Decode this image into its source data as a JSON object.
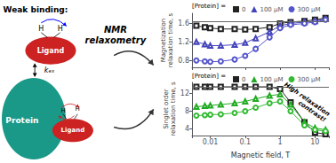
{
  "chart_data": [
    {
      "type": "line",
      "x": [
        0.004,
        0.007,
        0.01,
        0.02,
        0.05,
        0.1,
        0.2,
        0.5,
        1.0,
        2.0,
        5.0,
        10.0,
        20.0
      ],
      "log": "x",
      "xlim": [
        0.003,
        25
      ],
      "xticks": [
        0.01,
        0.1,
        1,
        10
      ],
      "ylabel": "Magnetization\nrelaxation time, s",
      "ylim": [
        0.65,
        1.82
      ],
      "yticks": [
        0.8,
        1.2,
        1.6
      ],
      "tick_labels": "y",
      "grid": false,
      "legend": "top",
      "legend_title": "[Protein] =",
      "reference_line": {
        "y": 1.65,
        "color": "#666666"
      },
      "series": [
        {
          "name": "0",
          "color": "#222222",
          "marker": "square",
          "values": [
            1.55,
            1.52,
            1.5,
            1.48,
            1.48,
            1.47,
            1.48,
            1.52,
            1.6,
            1.63,
            1.65,
            1.68,
            1.72
          ]
        },
        {
          "name": "100 μM",
          "color": "#4444bb",
          "marker": "triangle",
          "values": [
            1.2,
            1.15,
            1.12,
            1.12,
            1.14,
            1.18,
            1.28,
            1.42,
            1.55,
            1.6,
            1.63,
            1.65,
            1.7
          ]
        },
        {
          "name": "300 μM",
          "color": "#5555cc",
          "marker": "circle",
          "values": [
            0.8,
            0.78,
            0.77,
            0.78,
            0.82,
            0.9,
            1.05,
            1.3,
            1.5,
            1.57,
            1.6,
            1.63,
            1.68
          ]
        }
      ],
      "annotations": [
        "Weak binding:",
        "H",
        "H",
        "Ligand",
        "kₑₓ",
        "Protein",
        "Ligand",
        "H",
        "H",
        "NMR\nrelaxometry"
      ]
    },
    {
      "type": "line",
      "x": [
        0.004,
        0.007,
        0.01,
        0.02,
        0.05,
        0.1,
        0.2,
        0.5,
        1.0,
        2.0,
        5.0,
        10.0,
        20.0
      ],
      "log": "x",
      "xlim": [
        0.003,
        25
      ],
      "xticks": [
        0.01,
        0.1,
        1,
        10
      ],
      "xlabel": "Magnetic field, T",
      "ylabel": "Singlet order\nrelaxation time, s",
      "ylim": [
        2.5,
        14.5
      ],
      "yticks": [
        4,
        8,
        12
      ],
      "grid": false,
      "legend": "top",
      "legend_title": "[Protein] =",
      "reference_line": {
        "y": 13.5,
        "color": "#666666"
      },
      "series": [
        {
          "name": "0",
          "color": "#222222",
          "marker": "square",
          "values": [
            13.5,
            13.5,
            13.5,
            13.5,
            13.5,
            13.5,
            13.5,
            13.5,
            13.0,
            10.0,
            5.5,
            3.2,
            2.8
          ]
        },
        {
          "name": "100 μM",
          "color": "#22aa22",
          "marker": "triangle",
          "values": [
            9.0,
            9.2,
            9.3,
            9.5,
            9.8,
            10.2,
            10.8,
            11.5,
            11.8,
            9.5,
            5.5,
            4.2,
            3.8
          ]
        },
        {
          "name": "300 μM",
          "color": "#33bb33",
          "marker": "circle",
          "values": [
            7.0,
            7.1,
            7.2,
            7.3,
            7.6,
            8.0,
            8.8,
            9.8,
            10.2,
            8.0,
            4.8,
            3.8,
            3.5
          ]
        }
      ],
      "annotations": [
        "High relaxation\ncontrast!"
      ]
    }
  ]
}
